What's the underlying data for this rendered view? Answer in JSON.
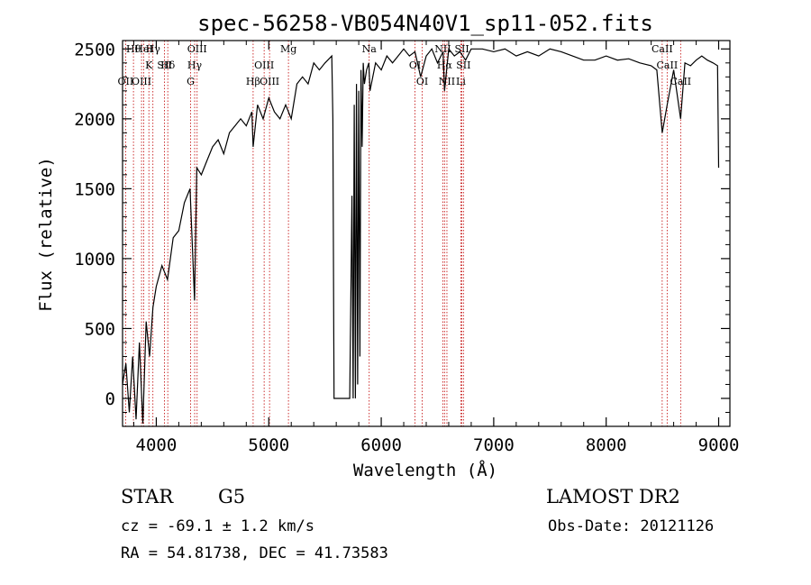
{
  "chart_data": {
    "type": "line",
    "title": "spec-56258-VB054N40V1_sp11-052.fits",
    "xlabel": "Wavelength (Å)",
    "ylabel": "Flux (relative)",
    "xlim": [
      3700,
      9100
    ],
    "ylim": [
      -200,
      2560
    ],
    "x_ticks": [
      4000,
      5000,
      6000,
      7000,
      8000,
      9000
    ],
    "y_ticks": [
      0,
      500,
      1000,
      1500,
      2000,
      2500
    ],
    "grid": false,
    "series": [
      {
        "x": [
          3700,
          3730,
          3760,
          3790,
          3820,
          3850,
          3880,
          3910,
          3940,
          3970,
          4000,
          4050,
          4100,
          4150,
          4200,
          4250,
          4300,
          4340,
          4360,
          4400,
          4450,
          4500,
          4550,
          4600,
          4650,
          4700,
          4750,
          4800,
          4850,
          4861,
          4900,
          4950,
          5000,
          5050,
          5100,
          5150,
          5200,
          5250,
          5300,
          5350,
          5400,
          5450,
          5500,
          5560,
          5570,
          5580,
          5700,
          5720,
          5740,
          5750,
          5760,
          5770,
          5780,
          5790,
          5800,
          5810,
          5820,
          5830,
          5840,
          5850,
          5870,
          5890,
          5900,
          5950,
          6000,
          6050,
          6100,
          6150,
          6200,
          6250,
          6300,
          6350,
          6400,
          6450,
          6500,
          6550,
          6563,
          6600,
          6650,
          6700,
          6750,
          6800,
          6900,
          7000,
          7100,
          7200,
          7300,
          7400,
          7500,
          7600,
          7700,
          7800,
          7900,
          8000,
          8100,
          8200,
          8300,
          8400,
          8450,
          8498,
          8542,
          8600,
          8662,
          8700,
          8750,
          8800,
          8850,
          8900,
          8950,
          8990,
          9000
        ],
        "y": [
          100,
          250,
          -100,
          300,
          -150,
          400,
          -180,
          550,
          300,
          650,
          800,
          950,
          850,
          1150,
          1200,
          1400,
          1500,
          700,
          1650,
          1600,
          1700,
          1800,
          1850,
          1750,
          1900,
          1950,
          2000,
          1950,
          2050,
          1800,
          2100,
          2000,
          2150,
          2050,
          2000,
          2100,
          2000,
          2250,
          2300,
          2250,
          2400,
          2350,
          2400,
          2450,
          2000,
          0,
          0,
          0,
          1450,
          0,
          2100,
          0,
          2250,
          100,
          2200,
          300,
          2350,
          1800,
          2400,
          2250,
          2350,
          2400,
          2200,
          2400,
          2350,
          2450,
          2400,
          2450,
          2500,
          2450,
          2480,
          2300,
          2450,
          2500,
          2400,
          2480,
          2200,
          2500,
          2450,
          2480,
          2420,
          2500,
          2500,
          2480,
          2500,
          2450,
          2480,
          2450,
          2500,
          2480,
          2450,
          2420,
          2420,
          2450,
          2420,
          2430,
          2400,
          2380,
          2350,
          1900,
          2100,
          2350,
          2000,
          2400,
          2380,
          2420,
          2450,
          2420,
          2400,
          2380,
          1650
        ]
      }
    ],
    "spectral_lines": [
      {
        "label": "Hθ",
        "wave": 3797
      },
      {
        "label": "K",
        "wave": 3934
      },
      {
        "label": "OII",
        "wave": 3727
      },
      {
        "label": "HeI",
        "wave": 3889
      },
      {
        "label": "Hδ",
        "wave": 4102
      },
      {
        "label": "OIII",
        "wave": 3869
      },
      {
        "label": "Hγ",
        "wave": 3970
      },
      {
        "label": "SII",
        "wave": 4072
      },
      {
        "label": "G",
        "wave": 4305
      },
      {
        "label": "OIII",
        "wave": 4363
      },
      {
        "label": "Hγ",
        "wave": 4341
      },
      {
        "label": "Hβ",
        "wave": 4861
      },
      {
        "label": "Mg",
        "wave": 5175
      },
      {
        "label": "OIII",
        "wave": 4959
      },
      {
        "label": "OIII",
        "wave": 5007
      },
      {
        "label": "Na",
        "wave": 5893
      },
      {
        "label": "OI",
        "wave": 6300
      },
      {
        "label": "OI",
        "wave": 6364
      },
      {
        "label": "NII",
        "wave": 6548
      },
      {
        "label": "Hα",
        "wave": 6563
      },
      {
        "label": "NII",
        "wave": 6584
      },
      {
        "label": "SII",
        "wave": 6717
      },
      {
        "label": "SII",
        "wave": 6731
      },
      {
        "label": "Li",
        "wave": 6708
      },
      {
        "label": "CaII",
        "wave": 8498
      },
      {
        "label": "CaII",
        "wave": 8542
      },
      {
        "label": "CaII",
        "wave": 8662
      }
    ]
  },
  "info": {
    "object_class": "STAR",
    "subclass": "G5",
    "survey": "LAMOST DR2",
    "redshift_text": "cz = -69.1 ± 1.2 km/s",
    "obs_date_text": "Obs-Date: 20121126",
    "coords_text": "RA =  54.81738, DEC =  41.73583"
  },
  "colors": {
    "spectrum": "#000000",
    "line_markers": "#c00000",
    "axes": "#000000"
  }
}
